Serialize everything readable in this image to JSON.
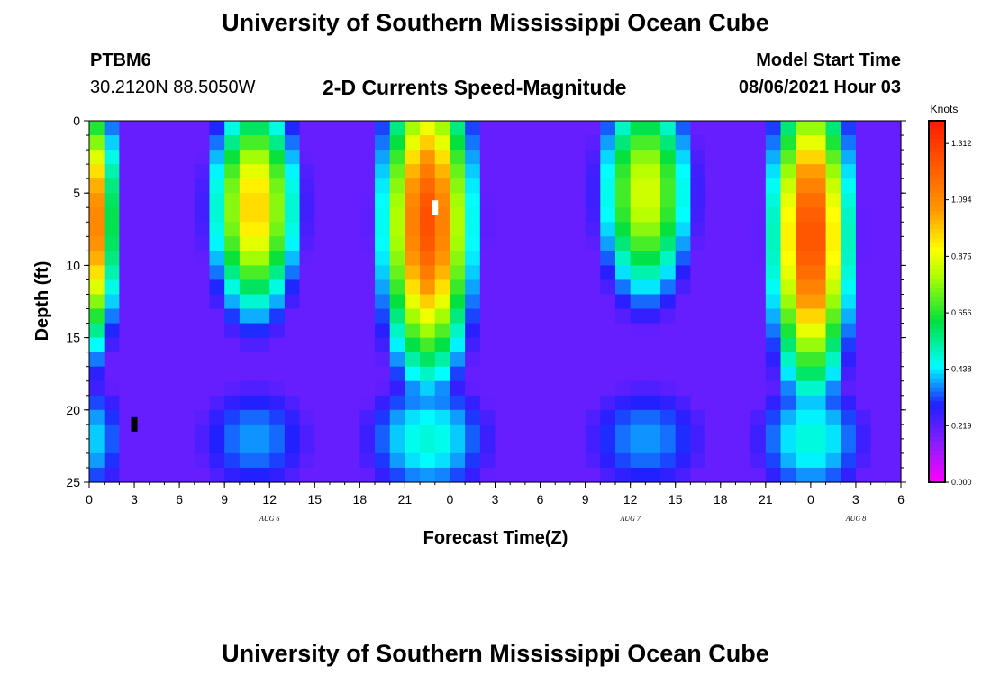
{
  "page_title": "University of Southern Mississippi Ocean Cube",
  "footer_title": "University of Southern Mississippi Ocean Cube",
  "station": "PTBM6",
  "location": "30.2120N  88.5050W",
  "product_title": "2-D Currents Speed-Magnitude",
  "model_start_label": "Model Start Time",
  "model_start_value": "08/06/2021 Hour 03",
  "chart_data": {
    "type": "heatmap",
    "title": "2-D Currents Speed-Magnitude",
    "xlabel": "Forecast Time(Z)",
    "ylabel": "Depth (ft)",
    "x_tick_labels": [
      "0",
      "3",
      "6",
      "9",
      "12",
      "15",
      "18",
      "21",
      "0",
      "3",
      "6",
      "9",
      "12",
      "15",
      "18",
      "21",
      "0",
      "3",
      "6"
    ],
    "x_range_hours": [
      0,
      54
    ],
    "y_tick_labels": [
      "0",
      "5",
      "10",
      "15",
      "20",
      "25"
    ],
    "y_range_ft": [
      0,
      25
    ],
    "date_labels": [
      {
        "text": "AUG 6",
        "hour": 12
      },
      {
        "text": "AUG 7",
        "hour": 36
      },
      {
        "text": "AUG 8",
        "hour": 51
      }
    ],
    "colorbar": {
      "unit": "Knots",
      "range": [
        0.0,
        1.4
      ],
      "tick_labels": [
        "0.000",
        "0.219",
        "0.438",
        "0.656",
        "0.875",
        "1.094",
        "1.312"
      ]
    },
    "markers": [
      {
        "hour": 23,
        "depth": 6,
        "color": "#ffffff"
      },
      {
        "hour": 3,
        "depth": 21,
        "color": "#000000"
      }
    ],
    "speed_blobs": [
      {
        "hour": 0.5,
        "depth": 7,
        "peak": 1.1,
        "width_h": 1.3,
        "width_d": 9,
        "tail": 0.6
      },
      {
        "hour": 11,
        "depth": 6,
        "peak": 0.98,
        "width_h": 3.0,
        "width_d": 8,
        "tail": 0.55
      },
      {
        "hour": 22.5,
        "depth": 7,
        "peak": 1.25,
        "width_h": 3.0,
        "width_d": 11,
        "tail": 0.7
      },
      {
        "hour": 37,
        "depth": 5,
        "peak": 0.86,
        "width_h": 3.2,
        "width_d": 8,
        "tail": 0.55
      },
      {
        "hour": 48,
        "depth": 8,
        "peak": 1.28,
        "width_h": 2.6,
        "width_d": 11,
        "tail": 0.7
      }
    ],
    "color_stops": [
      {
        "v": 0.0,
        "color": "#ff00ff"
      },
      {
        "v": 0.15,
        "color": "#8a1dff"
      },
      {
        "v": 0.3,
        "color": "#2020ff"
      },
      {
        "v": 0.45,
        "color": "#00ffff"
      },
      {
        "v": 0.62,
        "color": "#00e040"
      },
      {
        "v": 0.8,
        "color": "#b0ff00"
      },
      {
        "v": 0.9,
        "color": "#ffff00"
      },
      {
        "v": 1.05,
        "color": "#ff9900"
      },
      {
        "v": 1.4,
        "color": "#ff1a00"
      }
    ]
  }
}
